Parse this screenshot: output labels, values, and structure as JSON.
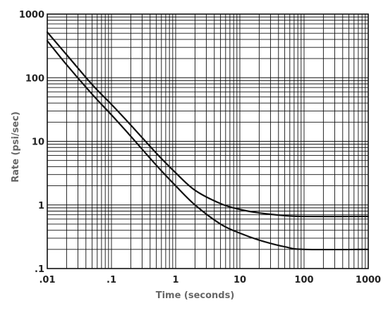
{
  "chart_data": {
    "type": "line",
    "xlabel": "Time (seconds)",
    "ylabel": "Rate (psi/sec)",
    "x_scale": "log",
    "y_scale": "log",
    "xlim": [
      0.01,
      1000
    ],
    "ylim": [
      0.1,
      1000
    ],
    "grid": true,
    "x_ticks": [
      0.01,
      0.1,
      1,
      10,
      100,
      1000
    ],
    "x_tick_labels": [
      ".01",
      ".1",
      "1",
      "10",
      "100",
      "1000"
    ],
    "y_ticks": [
      0.1,
      1,
      10,
      100,
      1000
    ],
    "y_tick_labels": [
      ".1",
      "1",
      "10",
      "100",
      "1000"
    ],
    "series": [
      {
        "x": [
          0.01,
          0.02,
          0.05,
          0.1,
          0.2,
          0.5,
          1,
          2,
          5,
          10,
          20,
          50,
          100,
          1000
        ],
        "y": [
          520,
          230,
          78,
          38,
          18,
          6.5,
          3.2,
          1.7,
          1.05,
          0.85,
          0.75,
          0.68,
          0.66,
          0.66
        ]
      },
      {
        "x": [
          0.01,
          0.02,
          0.05,
          0.1,
          0.2,
          0.5,
          1,
          2,
          5,
          10,
          20,
          50,
          100,
          1000
        ],
        "y": [
          380,
          160,
          55,
          26,
          12,
          4.2,
          2.0,
          1.0,
          0.5,
          0.36,
          0.28,
          0.22,
          0.2,
          0.2
        ]
      }
    ]
  }
}
